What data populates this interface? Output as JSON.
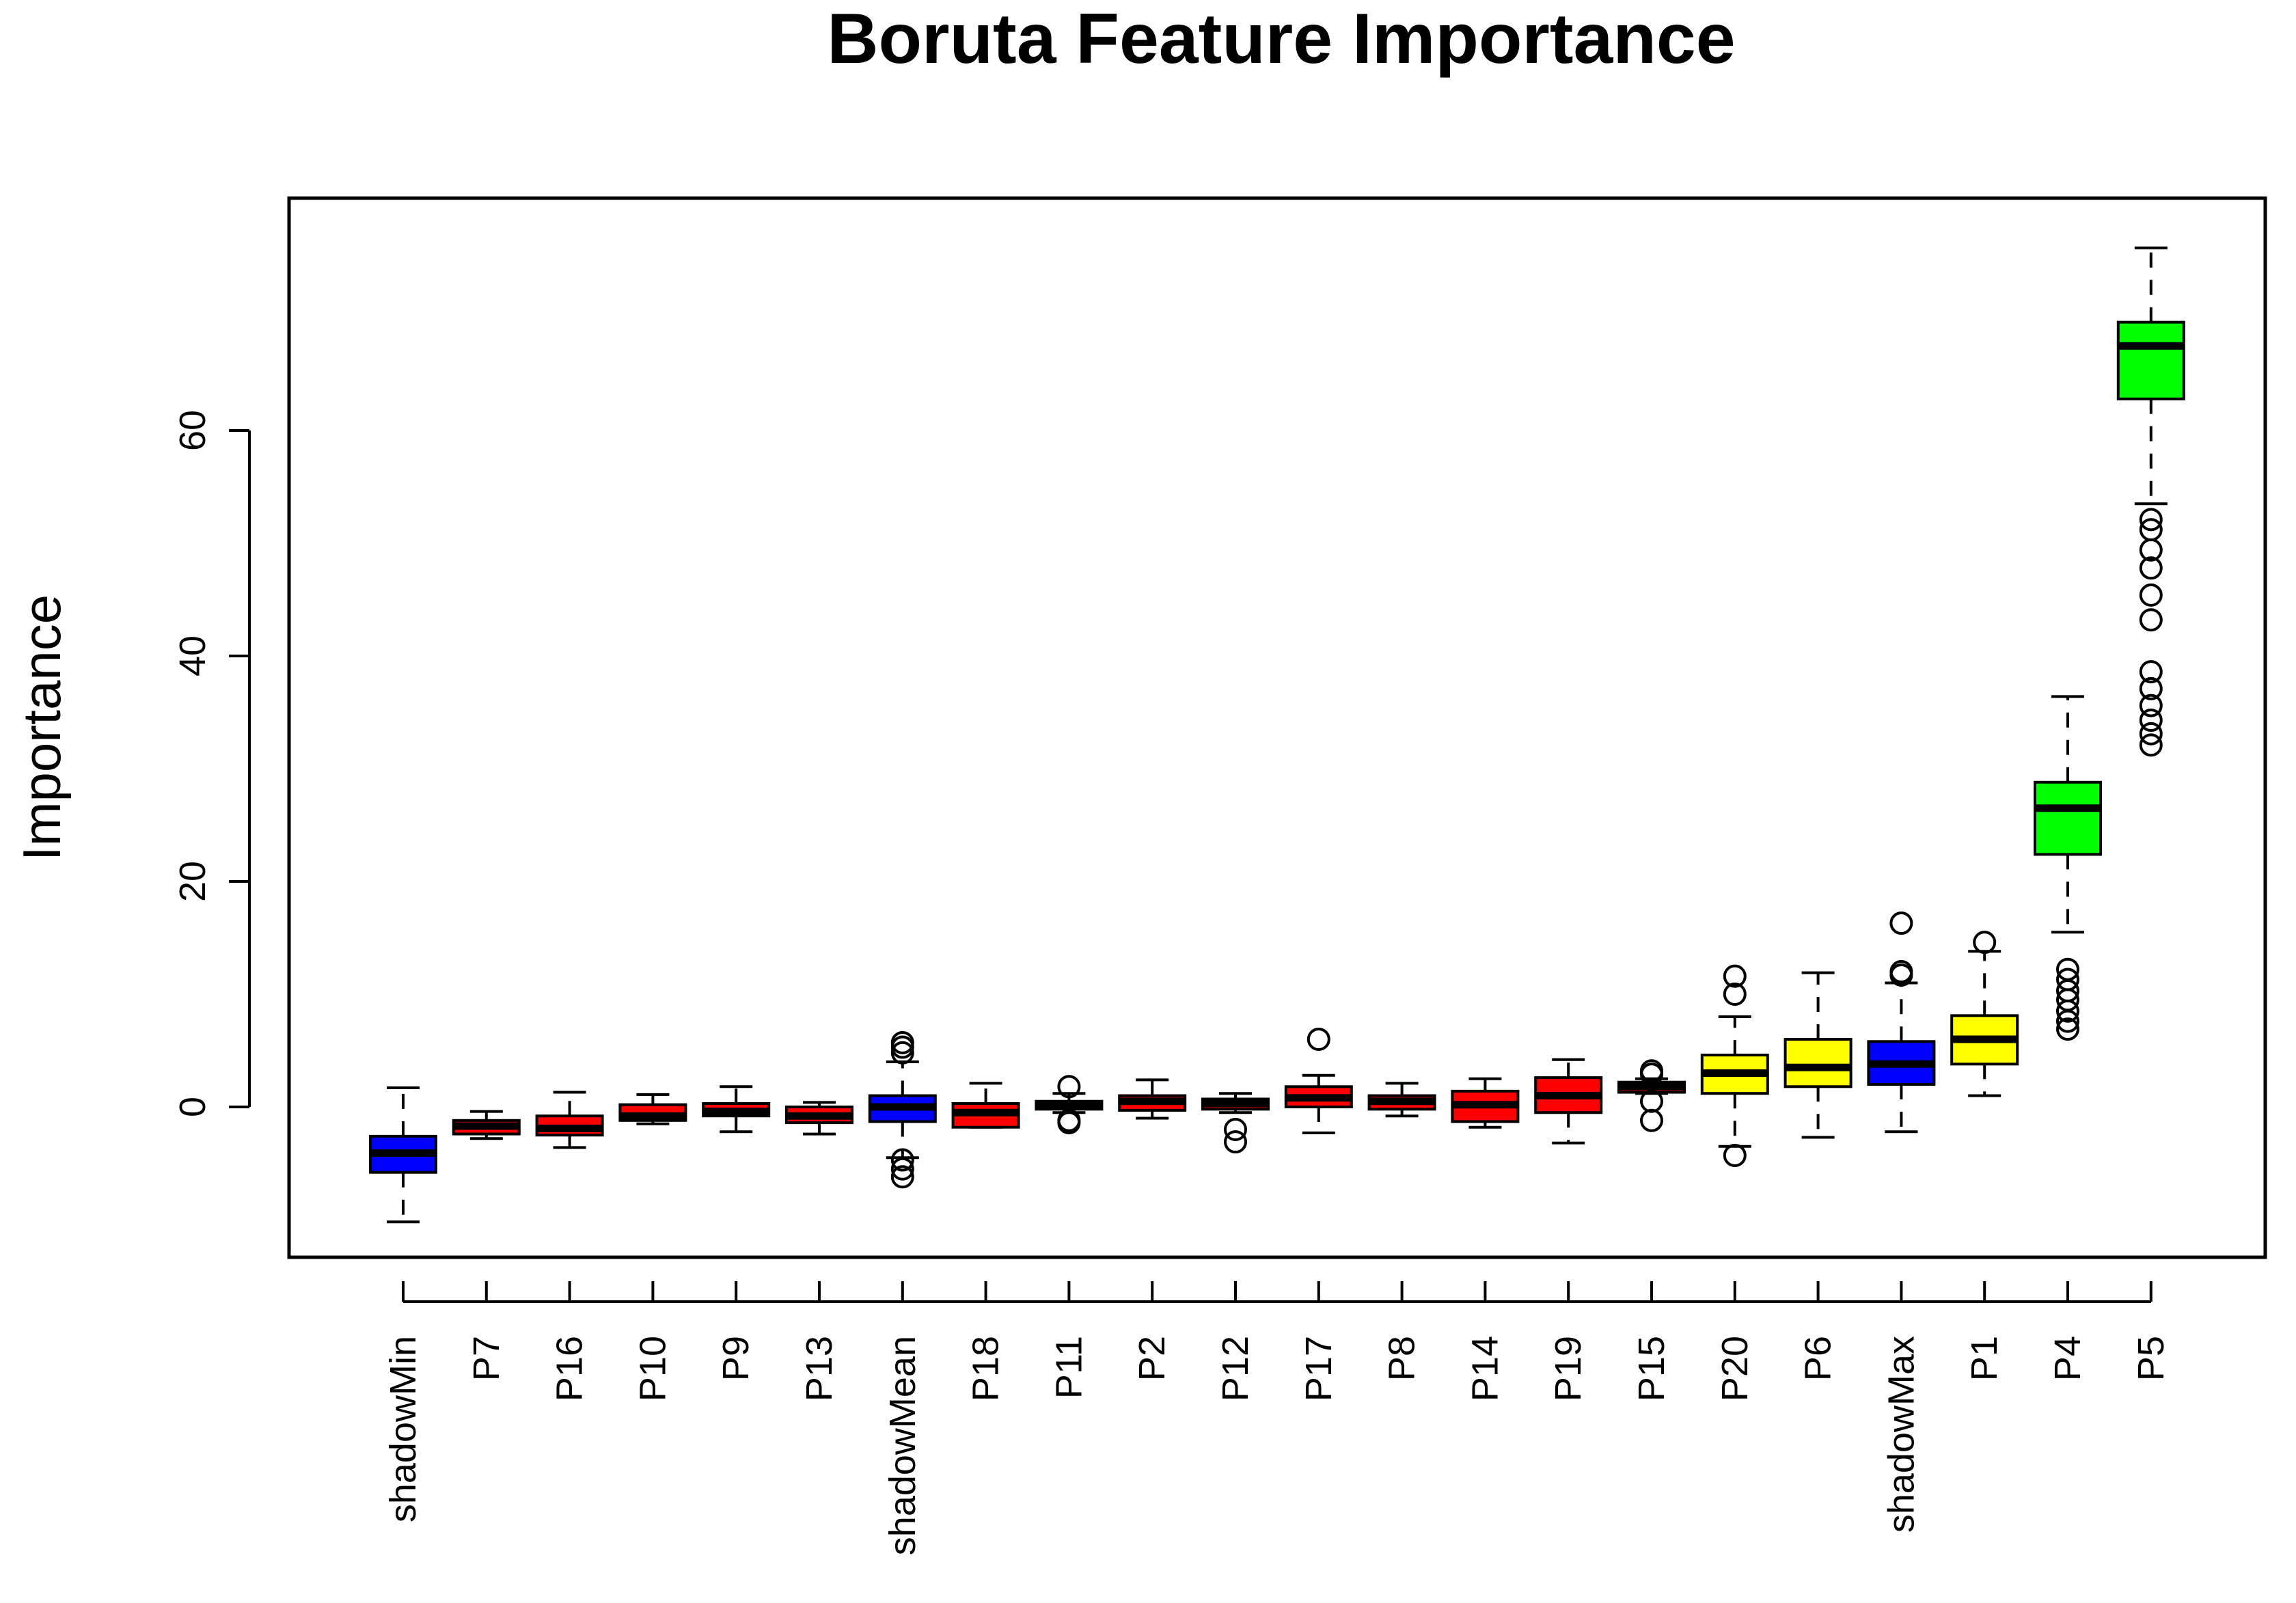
{
  "chart_data": {
    "type": "boxplot",
    "title": "Boruta Feature Importance",
    "xlabel": "",
    "ylabel": "Importance",
    "ylim": [
      -13.5,
      80
    ],
    "yticks": [
      0,
      20,
      40,
      60
    ],
    "grid": false,
    "legend": "none",
    "colors": {
      "shadow": "#0000ff",
      "rejected": "#ff0000",
      "tentative": "#ffff00",
      "confirmed": "#00ff00"
    },
    "boxes": [
      {
        "label": "shadowMin",
        "status": "shadow",
        "min": -10.2,
        "q1": -5.8,
        "median": -4.1,
        "q3": -2.6,
        "max": 1.7,
        "outliers": []
      },
      {
        "label": "P7",
        "status": "rejected",
        "min": -2.8,
        "q1": -2.4,
        "median": -1.7,
        "q3": -1.2,
        "max": -0.4,
        "outliers": []
      },
      {
        "label": "P16",
        "status": "rejected",
        "min": -3.6,
        "q1": -2.5,
        "median": -1.9,
        "q3": -0.8,
        "max": 1.3,
        "outliers": []
      },
      {
        "label": "P10",
        "status": "rejected",
        "min": -1.5,
        "q1": -1.2,
        "median": -0.8,
        "q3": 0.2,
        "max": 1.1,
        "outliers": []
      },
      {
        "label": "P9",
        "status": "rejected",
        "min": -2.2,
        "q1": -0.8,
        "median": -0.4,
        "q3": 0.3,
        "max": 1.8,
        "outliers": []
      },
      {
        "label": "P13",
        "status": "rejected",
        "min": -2.4,
        "q1": -1.4,
        "median": -0.8,
        "q3": 0.0,
        "max": 0.4,
        "outliers": []
      },
      {
        "label": "shadowMean",
        "status": "shadow",
        "min": -4.5,
        "q1": -1.3,
        "median": 0.0,
        "q3": 1.0,
        "max": 4.0,
        "outliers": [
          4.8,
          5.3,
          5.7,
          -4.7,
          -5.5,
          -6.2
        ]
      },
      {
        "label": "P18",
        "status": "rejected",
        "min": -1.8,
        "q1": -1.8,
        "median": -0.5,
        "q3": 0.3,
        "max": 2.1,
        "outliers": []
      },
      {
        "label": "P11",
        "status": "rejected",
        "min": -0.5,
        "q1": -0.2,
        "median": 0.2,
        "q3": 0.5,
        "max": 1.2,
        "outliers": [
          1.8,
          -1.2,
          -1.4
        ]
      },
      {
        "label": "P2",
        "status": "rejected",
        "min": -1.0,
        "q1": -0.3,
        "median": 0.5,
        "q3": 1.0,
        "max": 2.4,
        "outliers": []
      },
      {
        "label": "P12",
        "status": "rejected",
        "min": -0.5,
        "q1": -0.2,
        "median": 0.3,
        "q3": 0.7,
        "max": 1.2,
        "outliers": [
          -2.0,
          -3.1
        ]
      },
      {
        "label": "P17",
        "status": "rejected",
        "min": -2.3,
        "q1": 0.0,
        "median": 0.8,
        "q3": 1.8,
        "max": 2.8,
        "outliers": [
          6.0
        ]
      },
      {
        "label": "P8",
        "status": "rejected",
        "min": -0.8,
        "q1": -0.2,
        "median": 0.5,
        "q3": 1.0,
        "max": 2.1,
        "outliers": []
      },
      {
        "label": "P14",
        "status": "rejected",
        "min": -1.8,
        "q1": -1.3,
        "median": 0.2,
        "q3": 1.4,
        "max": 2.5,
        "outliers": []
      },
      {
        "label": "P19",
        "status": "rejected",
        "min": -3.2,
        "q1": -0.5,
        "median": 1.0,
        "q3": 2.6,
        "max": 4.2,
        "outliers": []
      },
      {
        "label": "P15",
        "status": "rejected",
        "min": 1.2,
        "q1": 1.3,
        "median": 1.8,
        "q3": 2.2,
        "max": 2.5,
        "outliers": [
          3.2,
          2.9,
          0.5,
          -1.2
        ]
      },
      {
        "label": "P20",
        "status": "tentative",
        "min": -3.5,
        "q1": 1.2,
        "median": 3.0,
        "q3": 4.6,
        "max": 8.0,
        "outliers": [
          11.6,
          10.0,
          -4.3
        ]
      },
      {
        "label": "P6",
        "status": "tentative",
        "min": -2.7,
        "q1": 1.8,
        "median": 3.5,
        "q3": 6.0,
        "max": 11.9,
        "outliers": []
      },
      {
        "label": "shadowMax",
        "status": "shadow",
        "min": -2.2,
        "q1": 2.0,
        "median": 3.8,
        "q3": 5.8,
        "max": 11.0,
        "outliers": [
          11.7,
          12.0,
          16.3
        ]
      },
      {
        "label": "P1",
        "status": "tentative",
        "min": 1.0,
        "q1": 3.8,
        "median": 6.0,
        "q3": 8.1,
        "max": 13.8,
        "outliers": [
          14.6
        ]
      },
      {
        "label": "P4",
        "status": "confirmed",
        "min": 15.5,
        "q1": 22.4,
        "median": 26.5,
        "q3": 28.8,
        "max": 36.4,
        "outliers": [
          12.2,
          11.3,
          10.3,
          9.5,
          8.5,
          7.6,
          6.9
        ]
      },
      {
        "label": "P5",
        "status": "confirmed",
        "min": 53.5,
        "q1": 62.8,
        "median": 67.5,
        "q3": 69.6,
        "max": 76.2,
        "outliers": [
          52.1,
          51.2,
          49.4,
          47.8,
          45.4,
          43.2,
          38.6,
          37.1,
          35.6,
          34.3,
          33.1,
          32.1
        ]
      }
    ]
  }
}
